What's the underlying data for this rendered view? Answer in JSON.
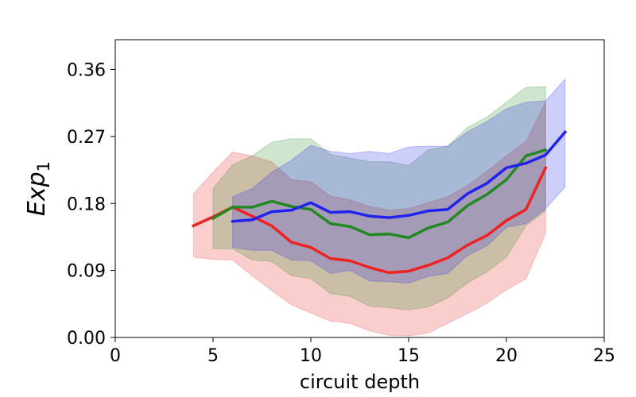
{
  "chart_data": {
    "type": "line",
    "title": "",
    "xlabel": "circuit depth",
    "ylabel": {
      "base": "Exp",
      "subscript": "1"
    },
    "xlim": [
      0,
      25
    ],
    "ylim": [
      0,
      0.4
    ],
    "xticks": [
      0,
      5,
      10,
      15,
      20,
      25
    ],
    "xtick_labels": [
      "0",
      "5",
      "10",
      "15",
      "20",
      "25"
    ],
    "yticks": [
      0.0,
      0.09,
      0.18,
      0.27,
      0.36
    ],
    "ytick_labels": [
      "0.00",
      "0.09",
      "0.18",
      "0.27",
      "0.36"
    ],
    "grid": false,
    "legend": null,
    "series": [
      {
        "name": "red",
        "color": "#ee2222",
        "x": [
          4,
          5,
          6,
          7,
          8,
          9,
          10,
          11,
          12,
          13,
          14,
          15,
          16,
          17,
          18,
          19,
          20,
          21,
          22
        ],
        "values": [
          0.15,
          0.162,
          0.175,
          0.163,
          0.15,
          0.128,
          0.121,
          0.106,
          0.103,
          0.094,
          0.087,
          0.089,
          0.097,
          0.107,
          0.124,
          0.137,
          0.157,
          0.172,
          0.228
        ],
        "upper": [
          0.193,
          0.222,
          0.249,
          0.244,
          0.236,
          0.212,
          0.209,
          0.19,
          0.185,
          0.176,
          0.171,
          0.173,
          0.181,
          0.189,
          0.204,
          0.223,
          0.244,
          0.263,
          0.316
        ],
        "lower": [
          0.108,
          0.105,
          0.104,
          0.083,
          0.063,
          0.044,
          0.033,
          0.022,
          0.019,
          0.009,
          0.003,
          0.002,
          0.006,
          0.019,
          0.032,
          0.046,
          0.064,
          0.079,
          0.14
        ]
      },
      {
        "name": "green",
        "color": "#228822",
        "x": [
          5,
          6,
          7,
          8,
          9,
          10,
          11,
          12,
          13,
          14,
          15,
          16,
          17,
          18,
          19,
          20,
          21,
          22
        ],
        "values": [
          0.16,
          0.175,
          0.175,
          0.183,
          0.176,
          0.172,
          0.153,
          0.149,
          0.138,
          0.139,
          0.134,
          0.147,
          0.155,
          0.177,
          0.192,
          0.212,
          0.244,
          0.252
        ],
        "upper": [
          0.2,
          0.232,
          0.244,
          0.262,
          0.267,
          0.267,
          0.246,
          0.241,
          0.236,
          0.236,
          0.231,
          0.252,
          0.257,
          0.282,
          0.296,
          0.316,
          0.336,
          0.337
        ],
        "lower": [
          0.119,
          0.119,
          0.104,
          0.102,
          0.083,
          0.079,
          0.059,
          0.055,
          0.042,
          0.04,
          0.037,
          0.041,
          0.053,
          0.073,
          0.088,
          0.108,
          0.15,
          0.17
        ]
      },
      {
        "name": "blue",
        "color": "#2222ee",
        "x": [
          6,
          7,
          8,
          9,
          10,
          11,
          12,
          13,
          14,
          15,
          16,
          17,
          18,
          19,
          20,
          21,
          22,
          23
        ],
        "values": [
          0.156,
          0.158,
          0.169,
          0.171,
          0.181,
          0.168,
          0.169,
          0.163,
          0.161,
          0.164,
          0.17,
          0.172,
          0.193,
          0.207,
          0.228,
          0.234,
          0.245,
          0.276
        ],
        "upper": [
          0.189,
          0.2,
          0.222,
          0.238,
          0.258,
          0.25,
          0.247,
          0.25,
          0.247,
          0.256,
          0.257,
          0.257,
          0.276,
          0.29,
          0.307,
          0.316,
          0.318,
          0.347
        ],
        "lower": [
          0.121,
          0.117,
          0.117,
          0.104,
          0.103,
          0.086,
          0.09,
          0.076,
          0.075,
          0.073,
          0.082,
          0.086,
          0.11,
          0.123,
          0.148,
          0.153,
          0.173,
          0.202
        ]
      }
    ]
  }
}
